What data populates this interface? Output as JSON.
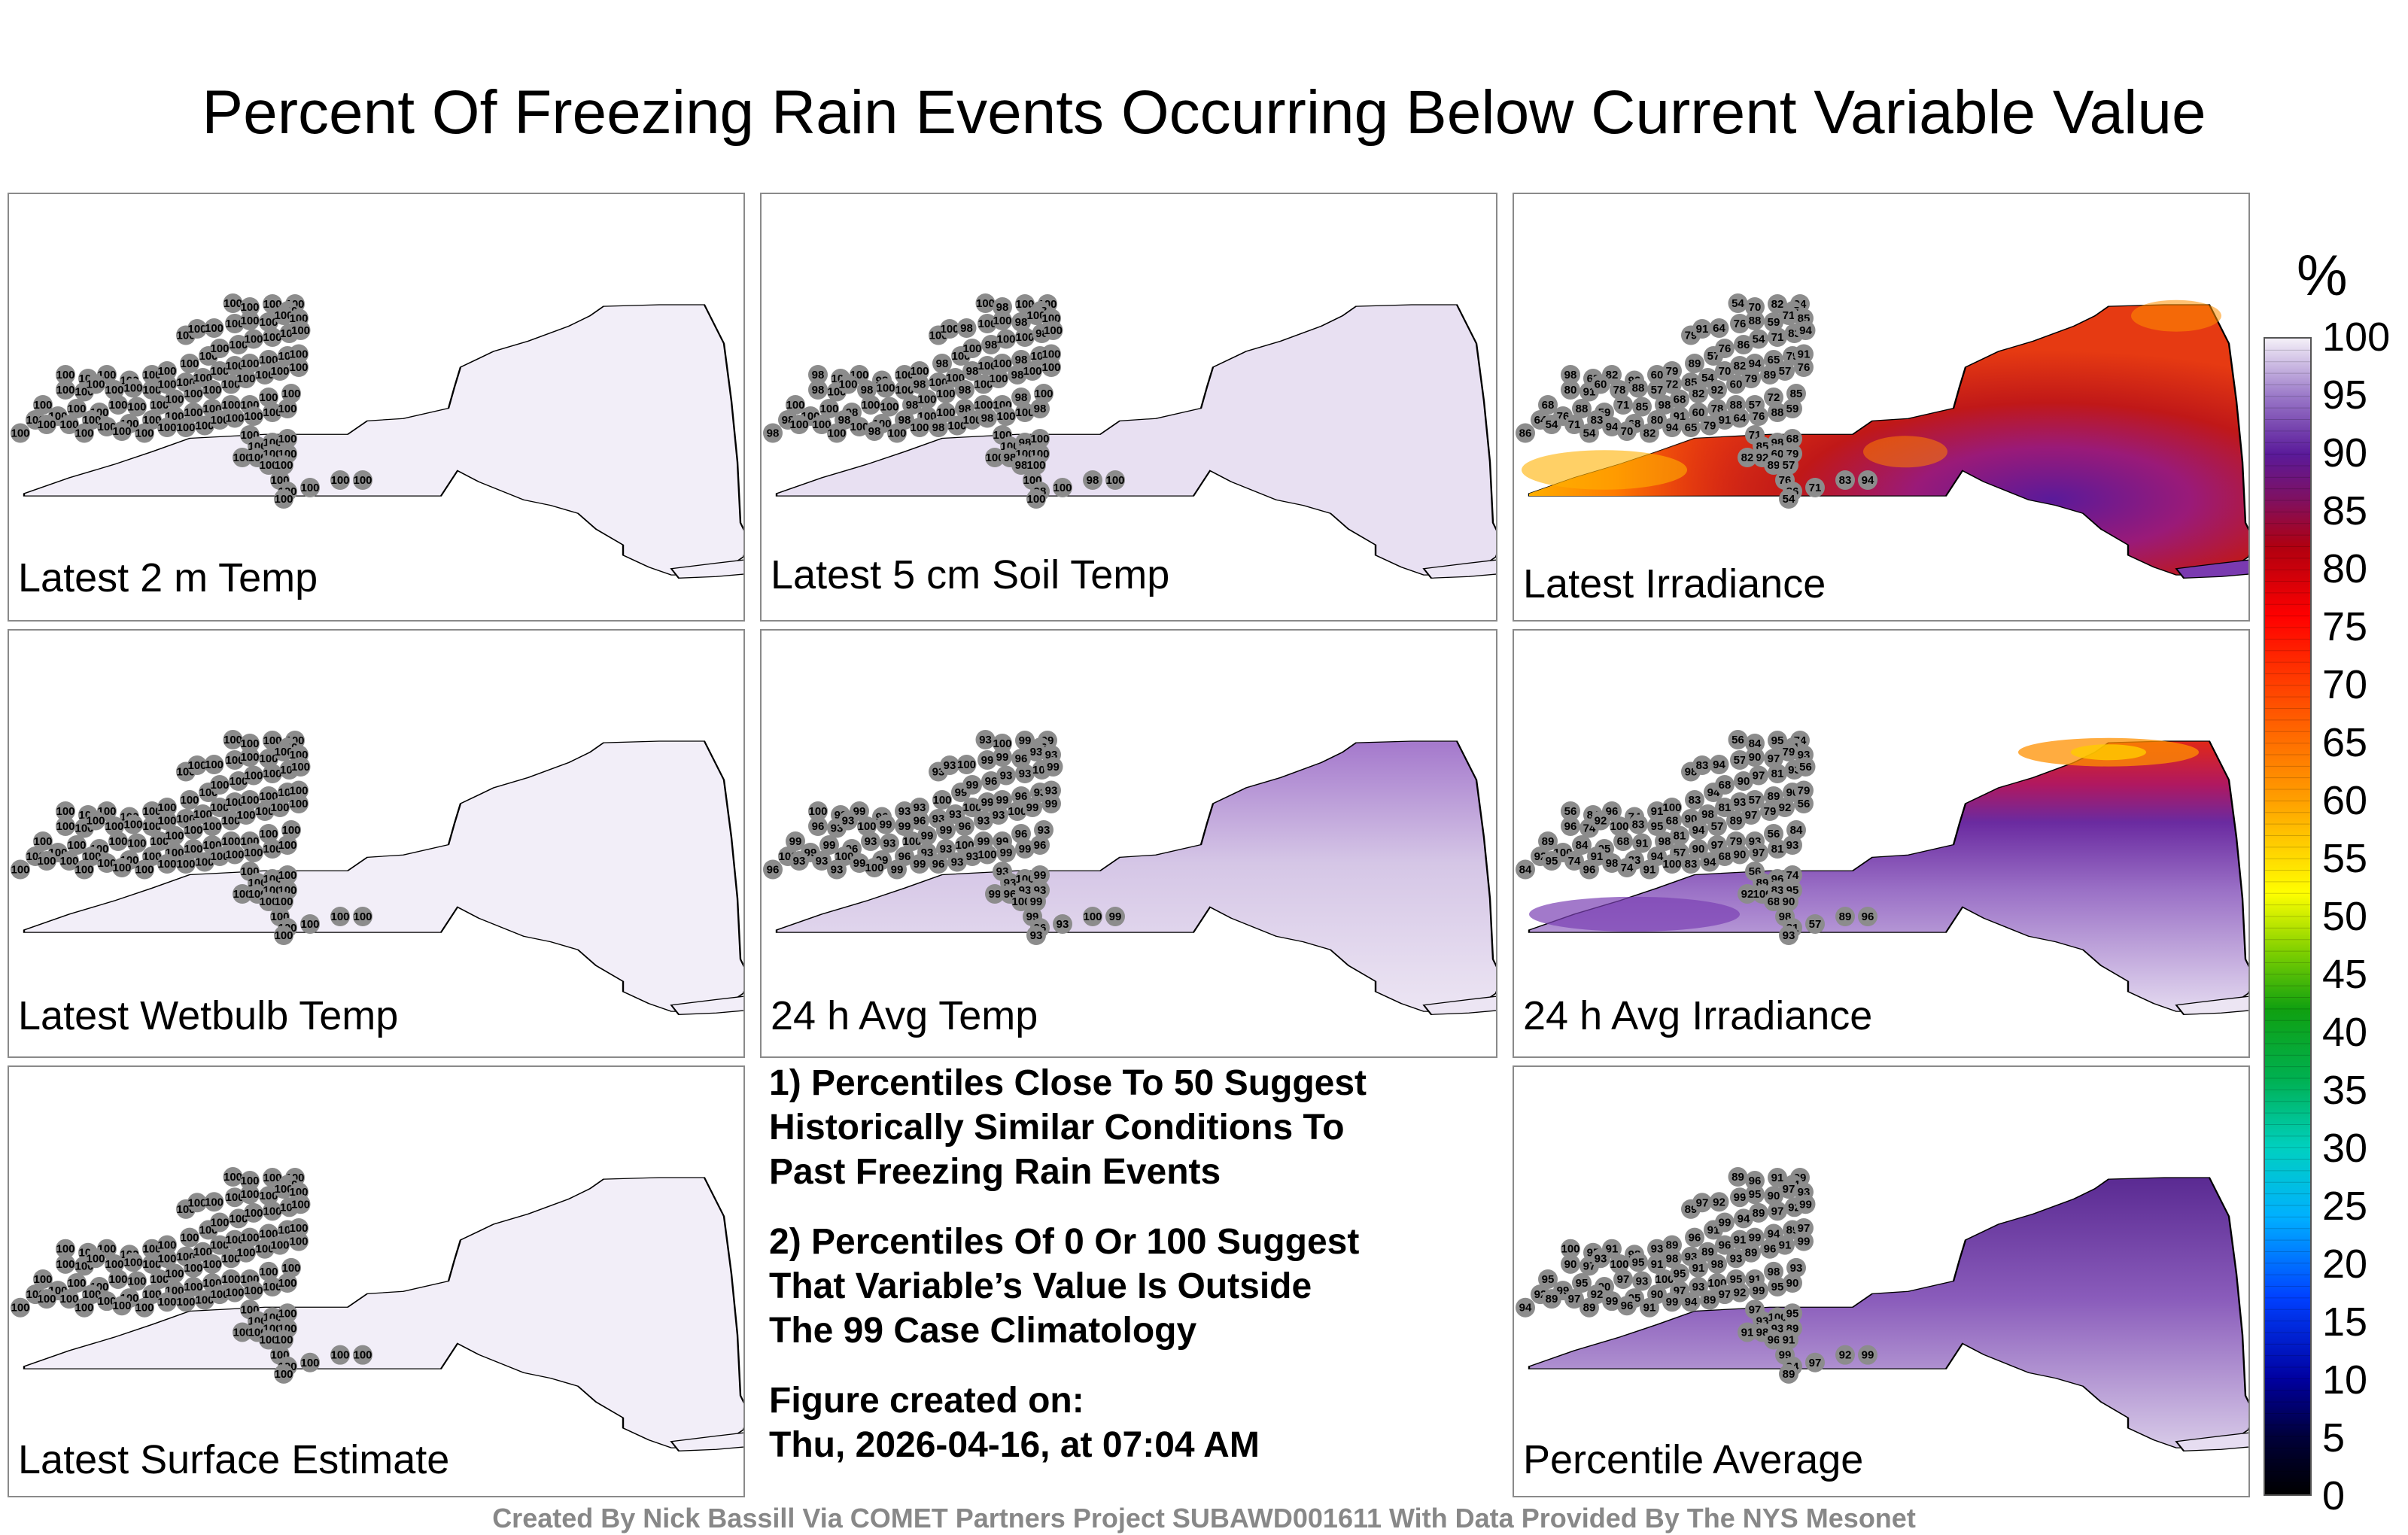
{
  "title": "Percent Of Freezing Rain Events Occurring Below Current Variable Value",
  "panels": [
    {
      "label": "Latest 2 m Temp",
      "fill": "#f2eef8",
      "mode": "flat"
    },
    {
      "label": "Latest 5 cm Soil Temp",
      "fill": "#ebe4f3",
      "mode": "flat"
    },
    {
      "label": "Latest Irradiance",
      "fill": "#d62a1a",
      "mode": "irradiance"
    },
    {
      "label": "Latest Wetbulb Temp",
      "fill": "#f2eef8",
      "mode": "flat"
    },
    {
      "label": "24 h Avg Temp",
      "fill": "#d8cbe8",
      "mode": "avgtemp"
    },
    {
      "label": "24 h Avg Irradiance",
      "fill": "#9a6cc4",
      "mode": "avgirr"
    },
    {
      "label": "Latest Surface Estimate",
      "fill": "#f2eef8",
      "mode": "flat"
    },
    {
      "label": "Percentile Average",
      "fill": "#8a5cbb",
      "mode": "avg"
    }
  ],
  "station_values": {
    "latest_2m_temp": [
      100
    ],
    "latest_5cm_soil_temp": [
      100,
      98
    ],
    "latest_irradiance": [
      54,
      57,
      59,
      60,
      64,
      65,
      68,
      70,
      71,
      72,
      76,
      78,
      79,
      80,
      82,
      83,
      85,
      86,
      88,
      89,
      91,
      92,
      94,
      98
    ],
    "latest_wetbulb_temp": [
      100
    ],
    "avg_24h_temp": [
      93,
      96,
      99,
      100
    ],
    "avg_24h_irradiance": [
      56,
      57,
      68,
      74,
      79,
      81,
      83,
      84,
      89,
      90,
      91,
      92,
      93,
      94,
      95,
      96,
      97,
      98,
      100
    ],
    "latest_surface_estimate": [
      100
    ],
    "percentile_average": [
      89,
      90,
      91,
      92,
      93,
      94,
      95,
      96,
      97,
      98,
      99,
      100
    ]
  },
  "notes": [
    "1) Percentiles Close To 50 Suggest\nHistorically Similar Conditions To\nPast Freezing Rain Events",
    "2) Percentiles Of 0 Or 100 Suggest\nThat Variable’s Value Is Outside\nThe 99 Case Climatology",
    "Figure created on:\nThu, 2026-04-16, at 07:04 AM"
  ],
  "colorbar": {
    "unit": "%",
    "ticks": [
      "100",
      "95",
      "90",
      "85",
      "80",
      "75",
      "70",
      "65",
      "60",
      "55",
      "50",
      "45",
      "40",
      "35",
      "30",
      "25",
      "20",
      "15",
      "10",
      "5",
      "0"
    ]
  },
  "colors": {
    "low_100": "#f2eef8",
    "high_purple": "#6a2da0",
    "dark_red": "#a01010",
    "orange": "#ff8000",
    "yellow": "#ffdd00",
    "station_dot": "#8c8c8c"
  },
  "footer": "Created By Nick Bassill Via COMET Partners Project SUBAWD001611 With Data Provided By The NYS Mesonet"
}
